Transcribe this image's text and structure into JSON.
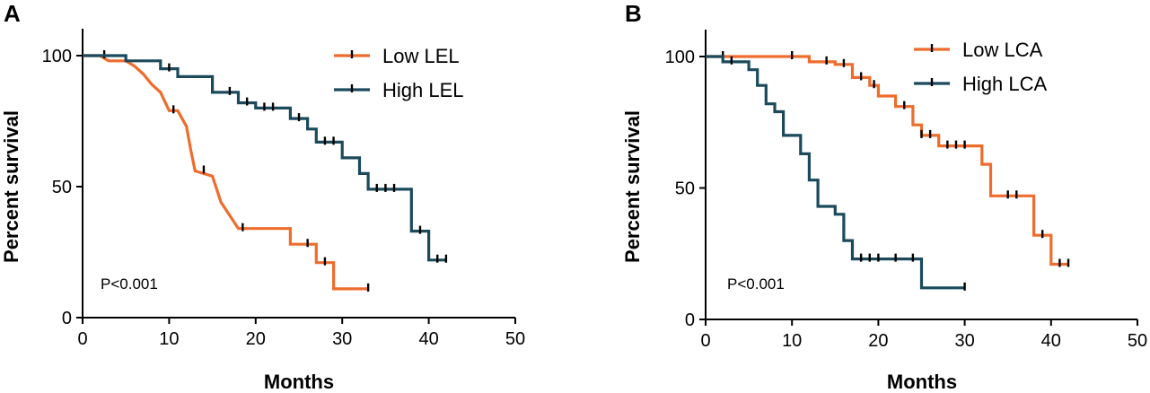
{
  "chart_data": [
    {
      "type": "line",
      "subtype": "kaplan-meier",
      "panel": "A",
      "xlabel": "Months",
      "ylabel": "Percent survival",
      "xlim": [
        0,
        50
      ],
      "ylim": [
        0,
        100
      ],
      "xticks": [
        0,
        10,
        20,
        30,
        40,
        50
      ],
      "yticks": [
        0,
        50,
        100
      ],
      "legend_position": "top-right",
      "annotation": "P<0.001",
      "series": [
        {
          "name": "Low LEL",
          "color": "#EE6C2C",
          "steps": [
            [
              0,
              100
            ],
            [
              2,
              100
            ],
            [
              3,
              98
            ],
            [
              5,
              98
            ],
            [
              6,
              96
            ],
            [
              7,
              93
            ],
            [
              8,
              89
            ],
            [
              9,
              86
            ],
            [
              10,
              79
            ],
            [
              11,
              79
            ],
            [
              12,
              73
            ],
            [
              12.5,
              64
            ],
            [
              13,
              56
            ],
            [
              15,
              54
            ],
            [
              16,
              44
            ],
            [
              17,
              39
            ],
            [
              18,
              34
            ],
            [
              24,
              34
            ],
            [
              24,
              28
            ],
            [
              27,
              28
            ],
            [
              27,
              21
            ],
            [
              29,
              21
            ],
            [
              29,
              11
            ],
            [
              33,
              11
            ]
          ],
          "censor_x": [
            2.5,
            10.5,
            14,
            18.5,
            26,
            28,
            33
          ]
        },
        {
          "name": "High LEL",
          "color": "#1A4A5C",
          "steps": [
            [
              0,
              100
            ],
            [
              5,
              100
            ],
            [
              5,
              98
            ],
            [
              9,
              98
            ],
            [
              9,
              95
            ],
            [
              11,
              95
            ],
            [
              11,
              92
            ],
            [
              15,
              92
            ],
            [
              15,
              86
            ],
            [
              18,
              86
            ],
            [
              18,
              82
            ],
            [
              20,
              82
            ],
            [
              20,
              80
            ],
            [
              24,
              80
            ],
            [
              24,
              76
            ],
            [
              26,
              76
            ],
            [
              26,
              72
            ],
            [
              27,
              72
            ],
            [
              27,
              67
            ],
            [
              30,
              67
            ],
            [
              30,
              61
            ],
            [
              32,
              61
            ],
            [
              32,
              55
            ],
            [
              33,
              55
            ],
            [
              33,
              49
            ],
            [
              38,
              49
            ],
            [
              38,
              33
            ],
            [
              40,
              33
            ],
            [
              40,
              22
            ],
            [
              42,
              22
            ]
          ],
          "censor_x": [
            10,
            17,
            19,
            21,
            22,
            25,
            28,
            29,
            34,
            35,
            36,
            39,
            41,
            42
          ]
        }
      ]
    },
    {
      "type": "line",
      "subtype": "kaplan-meier",
      "panel": "B",
      "xlabel": "Months",
      "ylabel": "Percent survival",
      "xlim": [
        0,
        50
      ],
      "ylim": [
        0,
        100
      ],
      "xticks": [
        0,
        10,
        20,
        30,
        40,
        50
      ],
      "yticks": [
        0,
        50,
        100
      ],
      "legend_position": "top-right",
      "annotation": "P<0.001",
      "series": [
        {
          "name": "Low LCA",
          "color": "#EE6C2C",
          "steps": [
            [
              0,
              100
            ],
            [
              12,
              100
            ],
            [
              12,
              98
            ],
            [
              15,
              98
            ],
            [
              15,
              97
            ],
            [
              17,
              97
            ],
            [
              17,
              92
            ],
            [
              19,
              92
            ],
            [
              19,
              89
            ],
            [
              20,
              89
            ],
            [
              20,
              85
            ],
            [
              22,
              85
            ],
            [
              22,
              81
            ],
            [
              24,
              81
            ],
            [
              24,
              74
            ],
            [
              25,
              74
            ],
            [
              25,
              70
            ],
            [
              27,
              70
            ],
            [
              27,
              66
            ],
            [
              32,
              66
            ],
            [
              32,
              59
            ],
            [
              33,
              59
            ],
            [
              33,
              47
            ],
            [
              38,
              47
            ],
            [
              38,
              32
            ],
            [
              40,
              32
            ],
            [
              40,
              21
            ],
            [
              42,
              21
            ]
          ],
          "censor_x": [
            2,
            10,
            14,
            16,
            18,
            19.5,
            23,
            25,
            26,
            28,
            29,
            30,
            35,
            36,
            39,
            41,
            42
          ]
        },
        {
          "name": "High LCA",
          "color": "#1A4A5C",
          "steps": [
            [
              0,
              100
            ],
            [
              2,
              100
            ],
            [
              2,
              98
            ],
            [
              5,
              98
            ],
            [
              5,
              95
            ],
            [
              6,
              95
            ],
            [
              6,
              89
            ],
            [
              7,
              89
            ],
            [
              7,
              82
            ],
            [
              8,
              82
            ],
            [
              8,
              79
            ],
            [
              9,
              79
            ],
            [
              9,
              70
            ],
            [
              11,
              70
            ],
            [
              11,
              63
            ],
            [
              12,
              63
            ],
            [
              12,
              53
            ],
            [
              13,
              53
            ],
            [
              13,
              43
            ],
            [
              15,
              43
            ],
            [
              15,
              40
            ],
            [
              16,
              40
            ],
            [
              16,
              30
            ],
            [
              17,
              30
            ],
            [
              17,
              23
            ],
            [
              25,
              23
            ],
            [
              25,
              12
            ],
            [
              30,
              12
            ]
          ],
          "censor_x": [
            3,
            18,
            19,
            20,
            22,
            24,
            30
          ]
        }
      ]
    }
  ]
}
